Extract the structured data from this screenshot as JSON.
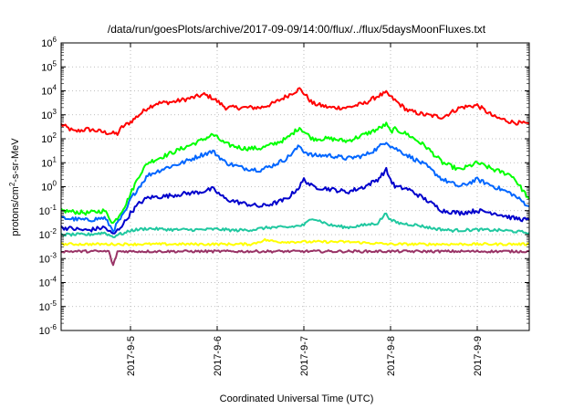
{
  "chart_data": {
    "type": "line",
    "title": "/data/run/goesPlots/archive/2017-09-09/14:00/flux/../flux/5daysMoonFluxes.txt",
    "xlabel": "Coordinated Universal Time (UTC)",
    "ylabel": "protons/cm2-s-sr-MeV",
    "yscale": "log",
    "ylim": [
      1e-06,
      1000000.0
    ],
    "xlim": [
      4.2,
      9.6
    ],
    "grid": true,
    "legend": "none",
    "y_ticks": [
      {
        "v": 1e-06,
        "base": "10",
        "exp": "-6"
      },
      {
        "v": 1e-05,
        "base": "10",
        "exp": "-5"
      },
      {
        "v": 0.0001,
        "base": "10",
        "exp": "-4"
      },
      {
        "v": 0.001,
        "base": "10",
        "exp": "-3"
      },
      {
        "v": 0.01,
        "base": "10",
        "exp": "-2"
      },
      {
        "v": 0.1,
        "base": "10",
        "exp": "-1"
      },
      {
        "v": 1,
        "base": "10",
        "exp": "0"
      },
      {
        "v": 10.0,
        "base": "10",
        "exp": "1"
      },
      {
        "v": 100.0,
        "base": "10",
        "exp": "2"
      },
      {
        "v": 1000.0,
        "base": "10",
        "exp": "3"
      },
      {
        "v": 10000.0,
        "base": "10",
        "exp": "4"
      },
      {
        "v": 100000.0,
        "base": "10",
        "exp": "5"
      },
      {
        "v": 1000000.0,
        "base": "10",
        "exp": "6"
      }
    ],
    "x_ticks": [
      {
        "v": 5,
        "label": "2017-9-5"
      },
      {
        "v": 6,
        "label": "2017-9-6"
      },
      {
        "v": 7,
        "label": "2017-9-7"
      },
      {
        "v": 8,
        "label": "2017-9-8"
      },
      {
        "v": 9,
        "label": "2017-9-9"
      }
    ],
    "series": [
      {
        "color": "#ff0000",
        "x": [
          4.2,
          4.35,
          4.5,
          4.6,
          4.72,
          4.85,
          4.9,
          5.0,
          5.1,
          5.2,
          5.3,
          5.5,
          5.7,
          5.85,
          5.95,
          6.1,
          6.3,
          6.5,
          6.65,
          6.8,
          6.95,
          7.0,
          7.1,
          7.3,
          7.5,
          7.7,
          7.85,
          7.95,
          8.05,
          8.2,
          8.4,
          8.6,
          8.8,
          9.0,
          9.2,
          9.4,
          9.6
        ],
        "y": [
          400,
          200,
          250,
          220,
          180,
          160,
          300,
          500,
          1000,
          2000,
          3000,
          3500,
          5000,
          7000,
          5000,
          2000,
          2000,
          2000,
          3000,
          6000,
          12000,
          8000,
          3000,
          2000,
          2000,
          3000,
          6000,
          8000,
          4000,
          1500,
          1000,
          800,
          2000,
          2500,
          800,
          500,
          400
        ]
      },
      {
        "color": "#00ff00",
        "x": [
          4.2,
          4.5,
          4.7,
          4.8,
          4.85,
          4.95,
          5.0,
          5.1,
          5.2,
          5.4,
          5.6,
          5.8,
          5.95,
          6.1,
          6.3,
          6.5,
          6.65,
          6.8,
          6.95,
          7.0,
          7.1,
          7.3,
          7.5,
          7.7,
          7.85,
          7.95,
          8.0,
          8.05,
          8.2,
          8.4,
          8.6,
          8.8,
          9.0,
          9.2,
          9.4,
          9.6
        ],
        "y": [
          0.1,
          0.08,
          0.1,
          0.03,
          0.05,
          0.2,
          0.5,
          3,
          10,
          20,
          40,
          80,
          150,
          60,
          40,
          40,
          60,
          100,
          300,
          200,
          100,
          100,
          80,
          150,
          250,
          400,
          200,
          250,
          150,
          50,
          10,
          5,
          10,
          5,
          3,
          0.3
        ]
      },
      {
        "color": "#0066ff",
        "x": [
          4.2,
          4.5,
          4.7,
          4.8,
          4.85,
          4.95,
          5.0,
          5.1,
          5.2,
          5.4,
          5.6,
          5.8,
          5.95,
          6.1,
          6.3,
          6.5,
          6.65,
          6.8,
          6.95,
          7.0,
          7.1,
          7.3,
          7.5,
          7.7,
          7.85,
          7.95,
          8.0,
          8.05,
          8.2,
          8.4,
          8.6,
          8.8,
          9.0,
          9.2,
          9.4,
          9.6
        ],
        "y": [
          0.05,
          0.04,
          0.05,
          0.015,
          0.03,
          0.1,
          0.3,
          1,
          3,
          6,
          10,
          20,
          30,
          10,
          6,
          5,
          8,
          15,
          50,
          30,
          20,
          20,
          15,
          20,
          40,
          80,
          50,
          40,
          20,
          8,
          2,
          1,
          2,
          1,
          0.5,
          0.15
        ]
      },
      {
        "color": "#0000cc",
        "x": [
          4.2,
          4.5,
          4.7,
          4.8,
          4.85,
          4.95,
          5.0,
          5.1,
          5.2,
          5.4,
          5.6,
          5.8,
          5.95,
          6.1,
          6.3,
          6.5,
          6.65,
          6.8,
          6.95,
          7.0,
          7.1,
          7.3,
          7.5,
          7.7,
          7.85,
          7.95,
          8.0,
          8.05,
          8.2,
          8.4,
          8.6,
          8.8,
          9.0,
          9.2,
          9.4,
          9.6
        ],
        "y": [
          0.02,
          0.015,
          0.02,
          0.01,
          0.015,
          0.04,
          0.08,
          0.2,
          0.35,
          0.4,
          0.5,
          0.6,
          0.8,
          0.3,
          0.2,
          0.15,
          0.2,
          0.3,
          1,
          2,
          1,
          0.8,
          0.6,
          1,
          2,
          5,
          2,
          1,
          0.8,
          0.3,
          0.1,
          0.08,
          0.1,
          0.08,
          0.05,
          0.04
        ]
      },
      {
        "color": "#20c8a0",
        "x": [
          4.2,
          4.5,
          4.7,
          4.8,
          4.85,
          4.95,
          5.0,
          5.2,
          5.5,
          5.8,
          6.0,
          6.2,
          6.4,
          6.6,
          6.8,
          7.0,
          7.1,
          7.3,
          7.5,
          7.7,
          7.85,
          7.95,
          8.0,
          8.1,
          8.3,
          8.5,
          8.7,
          9.0,
          9.3,
          9.6
        ],
        "y": [
          0.01,
          0.01,
          0.012,
          0.008,
          0.01,
          0.012,
          0.015,
          0.018,
          0.016,
          0.016,
          0.017,
          0.015,
          0.016,
          0.02,
          0.02,
          0.025,
          0.05,
          0.025,
          0.02,
          0.025,
          0.03,
          0.08,
          0.04,
          0.03,
          0.025,
          0.018,
          0.015,
          0.016,
          0.015,
          0.012
        ]
      },
      {
        "color": "#ffff00",
        "x": [
          4.2,
          4.6,
          4.8,
          5.0,
          5.5,
          6.0,
          6.4,
          6.55,
          6.7,
          7.0,
          7.5,
          8.0,
          8.5,
          9.0,
          9.6
        ],
        "y": [
          0.004,
          0.004,
          0.004,
          0.004,
          0.004,
          0.004,
          0.004,
          0.006,
          0.005,
          0.005,
          0.005,
          0.004,
          0.004,
          0.004,
          0.004
        ]
      },
      {
        "color": "#993366",
        "x": [
          4.2,
          4.5,
          4.75,
          4.8,
          4.85,
          5.0,
          5.5,
          6.0,
          6.5,
          7.0,
          7.5,
          8.0,
          8.5,
          9.0,
          9.6
        ],
        "y": [
          0.002,
          0.002,
          0.002,
          0.0005,
          0.002,
          0.002,
          0.002,
          0.002,
          0.002,
          0.002,
          0.002,
          0.002,
          0.002,
          0.002,
          0.002
        ]
      }
    ]
  }
}
